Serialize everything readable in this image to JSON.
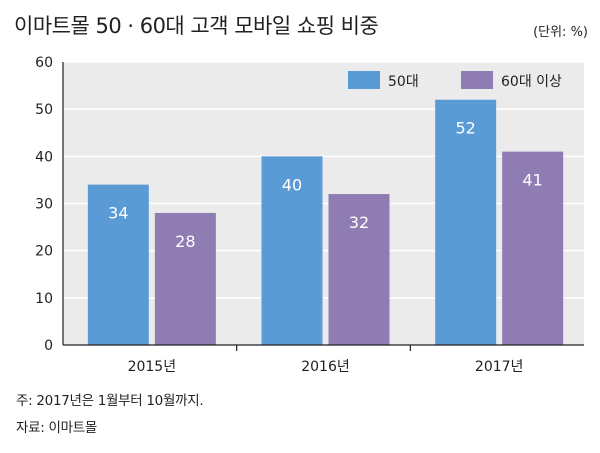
{
  "title": "이마트몰 50 · 60대 고객 모바일 쇼핑 비중",
  "unit": "(단위: %)",
  "notes": {
    "note1": "주: 2017년은 1월부터 10월까지.",
    "note2": "자료: 이마트몰"
  },
  "chart_data": {
    "type": "bar",
    "categories": [
      "2015년",
      "2016년",
      "2017년"
    ],
    "series": [
      {
        "name": "50대",
        "values": [
          34,
          40,
          52
        ],
        "color": "#5b9bd5"
      },
      {
        "name": "60대 이상",
        "values": [
          28,
          32,
          41
        ],
        "color": "#8e7cb3"
      }
    ],
    "ylim": [
      0,
      60
    ],
    "yticks": [
      0,
      10,
      20,
      30,
      40,
      50,
      60
    ],
    "grid": true,
    "legend": "top-right",
    "data_labels": true
  },
  "colors": {
    "background": "#ebebeb",
    "grid": "#ffffff",
    "axis": "#231f20"
  }
}
